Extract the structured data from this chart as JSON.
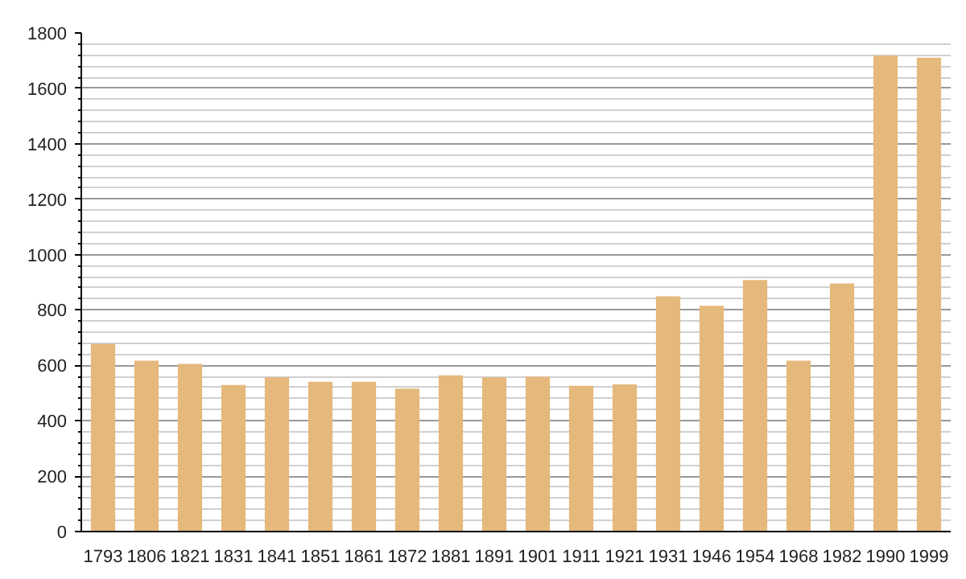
{
  "chart_data": {
    "type": "bar",
    "categories": [
      "1793",
      "1806",
      "1821",
      "1831",
      "1841",
      "1851",
      "1861",
      "1872",
      "1881",
      "1891",
      "1901",
      "1911",
      "1921",
      "1931",
      "1946",
      "1954",
      "1968",
      "1982",
      "1990",
      "1999"
    ],
    "values": [
      677,
      617,
      605,
      529,
      557,
      541,
      541,
      516,
      564,
      557,
      559,
      526,
      531,
      849,
      815,
      908,
      617,
      896,
      1718,
      1711
    ],
    "color": "#e5b87c",
    "ylim": [
      0,
      1800
    ],
    "yticks": [
      0,
      200,
      400,
      600,
      800,
      1000,
      1200,
      1400,
      1600,
      1800
    ],
    "grid": "y"
  }
}
